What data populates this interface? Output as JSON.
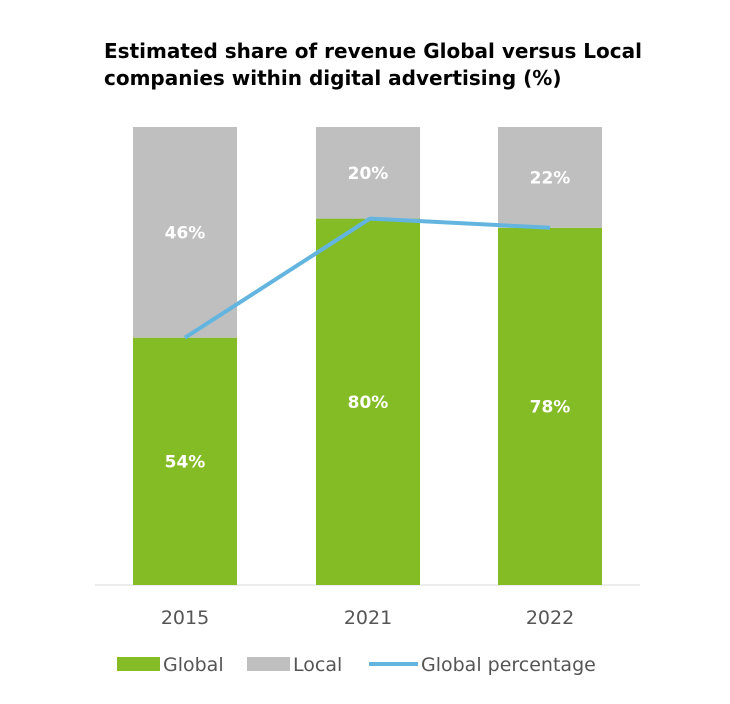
{
  "chart_data": {
    "type": "bar",
    "stacked": true,
    "title": "Estimated share of revenue Global versus Local companies within digital advertising (%)",
    "categories": [
      "2015",
      "2021",
      "2022"
    ],
    "series": [
      {
        "name": "Global",
        "values": [
          54,
          80,
          78
        ],
        "labels": [
          "54%",
          "80%",
          "78%"
        ],
        "color": "#84bc26"
      },
      {
        "name": "Local",
        "values": [
          46,
          20,
          22
        ],
        "labels": [
          "46%",
          "20%",
          "22%"
        ],
        "color": "#bfbfbf"
      }
    ],
    "line_series": {
      "name": "Global percentage",
      "values": [
        54,
        80,
        78
      ],
      "color": "#63b5e0"
    },
    "ylim": [
      0,
      100
    ],
    "grid": false,
    "legend_position": "bottom"
  }
}
